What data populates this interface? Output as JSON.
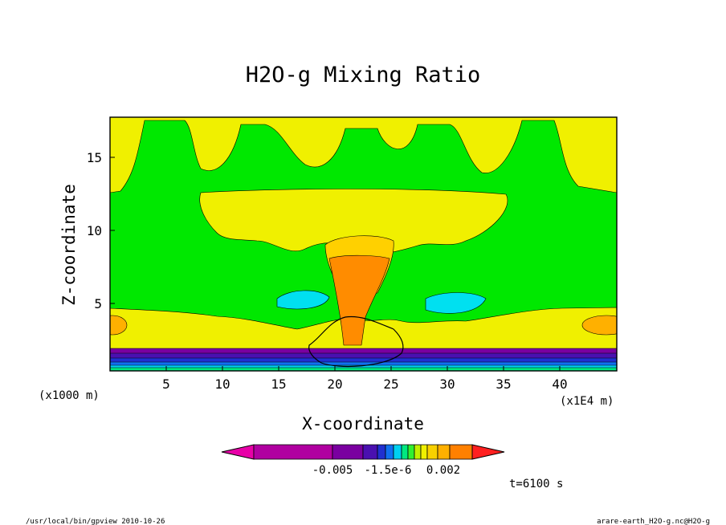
{
  "chart_data": {
    "type": "heatmap",
    "title": "H2O-g Mixing Ratio",
    "xlabel": "X-coordinate",
    "ylabel": "Z-coordinate",
    "x_unit_left": "(x1000 m)",
    "x_unit_right": "(x1E4 m)",
    "xlim": [
      0,
      45
    ],
    "ylim": [
      0,
      17.5
    ],
    "x_ticks": [
      "5",
      "10",
      "15",
      "20",
      "25",
      "30",
      "35",
      "40"
    ],
    "y_ticks": [
      "5",
      "10",
      "15"
    ],
    "colorbar": {
      "colors": [
        "#e800a8",
        "#b000a0",
        "#7a00a0",
        "#4a10b0",
        "#2030d0",
        "#1070f0",
        "#00d0f0",
        "#00e880",
        "#30f030",
        "#c0f000",
        "#f0f000",
        "#f8d000",
        "#ffb000",
        "#ff8000",
        "#ff2020"
      ],
      "labels": [
        "-0.005",
        "-1.5e-6",
        "0.002"
      ]
    },
    "time_label": "t=6100 s"
  },
  "footer": {
    "left": "/usr/local/bin/gpview  2010-10-26",
    "right": "arare-earth_H2O-g.nc@H2O-g"
  }
}
